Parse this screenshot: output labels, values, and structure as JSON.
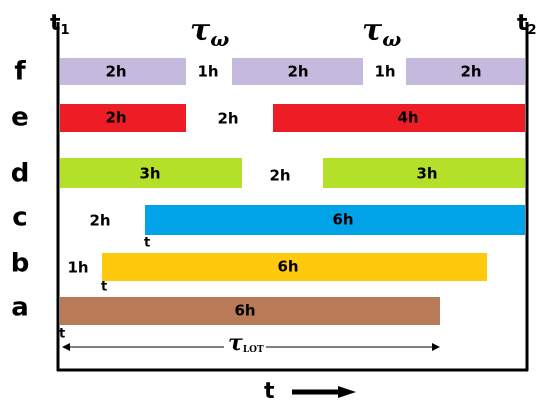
{
  "header": {
    "start": {
      "main": "t",
      "sub": "1"
    },
    "end": {
      "main": "t",
      "sub": "2"
    },
    "tau_left": {
      "main": "τ",
      "sub": "ω"
    },
    "tau_right": {
      "main": "τ",
      "sub": "ω"
    }
  },
  "rows": [
    {
      "label": "f",
      "items": [
        "2h",
        "1h",
        "2h",
        "1h",
        "2h"
      ]
    },
    {
      "label": "e",
      "items": [
        "2h",
        "2h",
        "4h"
      ]
    },
    {
      "label": "d",
      "items": [
        "3h",
        "2h",
        "3h"
      ]
    },
    {
      "label": "c",
      "items": [
        "2h",
        "6h"
      ],
      "marker": "t"
    },
    {
      "label": "b",
      "items": [
        "1h",
        "6h"
      ],
      "marker": "t"
    },
    {
      "label": "a",
      "items": [
        "6h"
      ],
      "marker": "t"
    }
  ],
  "lot": {
    "main": "τ",
    "sub": "LOT"
  },
  "axis": "t"
}
